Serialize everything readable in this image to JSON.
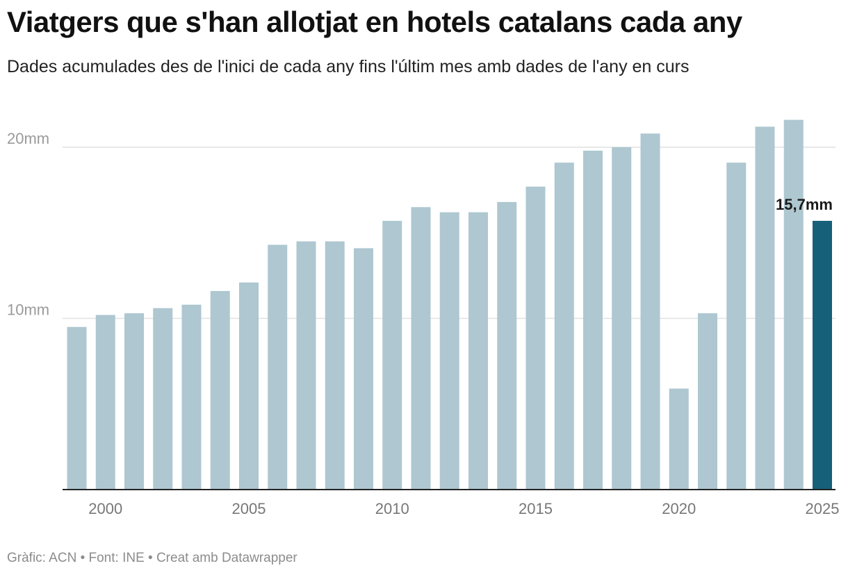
{
  "title": "Viatgers que s'han allotjat en hotels catalans cada any",
  "subtitle": "Dades acumulades des de l'inici de cada any fins l'últim mes amb dades de l'any en curs",
  "footer": "Gràfic: ACN • Font: INE • Creat amb Datawrapper",
  "colors": {
    "bar": "#aec7d0",
    "highlight": "#176079",
    "grid": "#e1e1e1",
    "axis": "#222222"
  },
  "chart_data": {
    "type": "bar",
    "x": [
      1999,
      2000,
      2001,
      2002,
      2003,
      2004,
      2005,
      2006,
      2007,
      2008,
      2009,
      2010,
      2011,
      2012,
      2013,
      2014,
      2015,
      2016,
      2017,
      2018,
      2019,
      2020,
      2021,
      2022,
      2023,
      2024,
      2025
    ],
    "values": [
      9.5,
      10.2,
      10.3,
      10.6,
      10.8,
      11.6,
      12.1,
      14.3,
      14.5,
      14.5,
      14.1,
      15.7,
      16.5,
      16.2,
      16.2,
      16.8,
      17.7,
      19.1,
      19.8,
      20.0,
      20.8,
      5.9,
      10.3,
      19.1,
      21.2,
      21.6,
      15.7
    ],
    "highlight_index": 26,
    "highlight_label": "15,7mm",
    "x_ticks": [
      "2000",
      "2005",
      "2010",
      "2015",
      "2020",
      "2025"
    ],
    "x_tick_values": [
      2000,
      2005,
      2010,
      2015,
      2020,
      2025
    ],
    "y_ticks": [
      "10mm",
      "20mm"
    ],
    "y_tick_values": [
      10,
      20
    ],
    "ylim": [
      0,
      22
    ],
    "unit": "mm",
    "grid": true,
    "legend": "none"
  }
}
